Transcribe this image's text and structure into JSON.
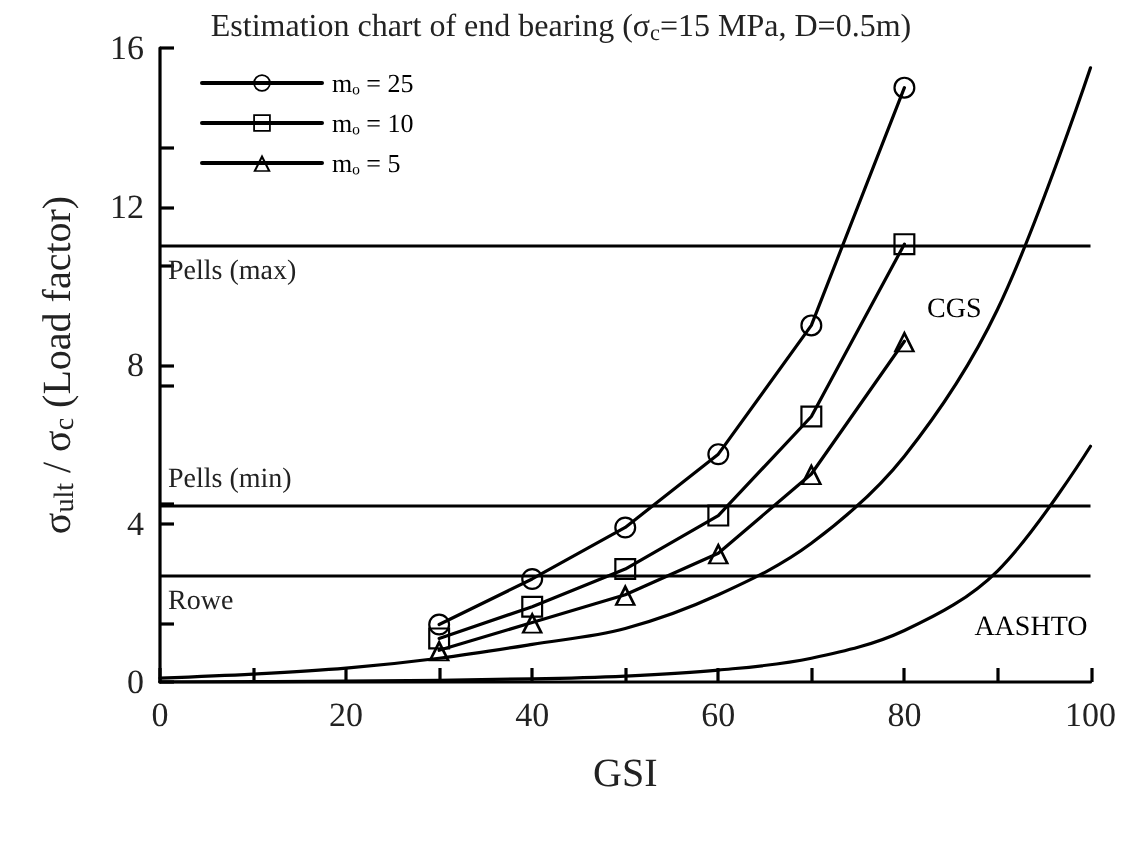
{
  "chart_data": {
    "type": "line",
    "title": "Estimation chart of end bearing (σ$_{c}$=15 MPa, D=0.5m)",
    "xlabel": "GSI",
    "ylabel": "σ$_{ult}$ / σ$_{c}$ (Load factor)",
    "x": [
      30,
      40,
      50,
      60,
      70,
      80
    ],
    "series": [
      {
        "name": "mₒ = 25",
        "color": "#000000",
        "marker": "circle",
        "values": [
          1.45,
          2.6,
          3.9,
          5.75,
          9.0,
          15.0
        ]
      },
      {
        "name": "mₒ = 10",
        "color": "#000000",
        "marker": "square",
        "values": [
          1.1,
          1.9,
          2.85,
          4.2,
          6.7,
          11.05
        ]
      },
      {
        "name": "mₒ = 5",
        "color": "#000000",
        "marker": "triangle",
        "values": [
          0.8,
          1.5,
          2.2,
          3.25,
          5.25,
          8.6
        ]
      },
      {
        "name": "CGS",
        "color": "#000000",
        "marker": "none",
        "x": [
          0,
          10,
          20,
          30,
          40,
          50,
          60,
          70,
          80,
          90,
          100
        ],
        "values": [
          0.1,
          0.2,
          0.35,
          0.6,
          0.95,
          1.35,
          2.2,
          3.5,
          5.7,
          9.4,
          15.5
        ]
      },
      {
        "name": "AASHTO",
        "color": "#000000",
        "marker": "none",
        "x": [
          0,
          20,
          40,
          50,
          60,
          70,
          80,
          90,
          100
        ],
        "values": [
          0,
          0.02,
          0.08,
          0.15,
          0.3,
          0.6,
          1.3,
          2.8,
          5.95
        ]
      }
    ],
    "ref_lines": [
      {
        "axis": "y",
        "value": 11.0,
        "label": "Pells (max)",
        "color": "#000000"
      },
      {
        "axis": "y",
        "value": 4.45,
        "label": "Pells (min)",
        "color": "#000000"
      },
      {
        "axis": "y",
        "value": 2.67,
        "label": "Rowe",
        "color": "#000000"
      }
    ],
    "xlim": [
      0,
      100
    ],
    "xticks": [
      0,
      20,
      40,
      60,
      80,
      100
    ],
    "ylim": [
      0,
      16
    ],
    "yticks": [
      0,
      4,
      8,
      12,
      16
    ],
    "grid": false,
    "legend": "top left",
    "line_style": "solid"
  }
}
